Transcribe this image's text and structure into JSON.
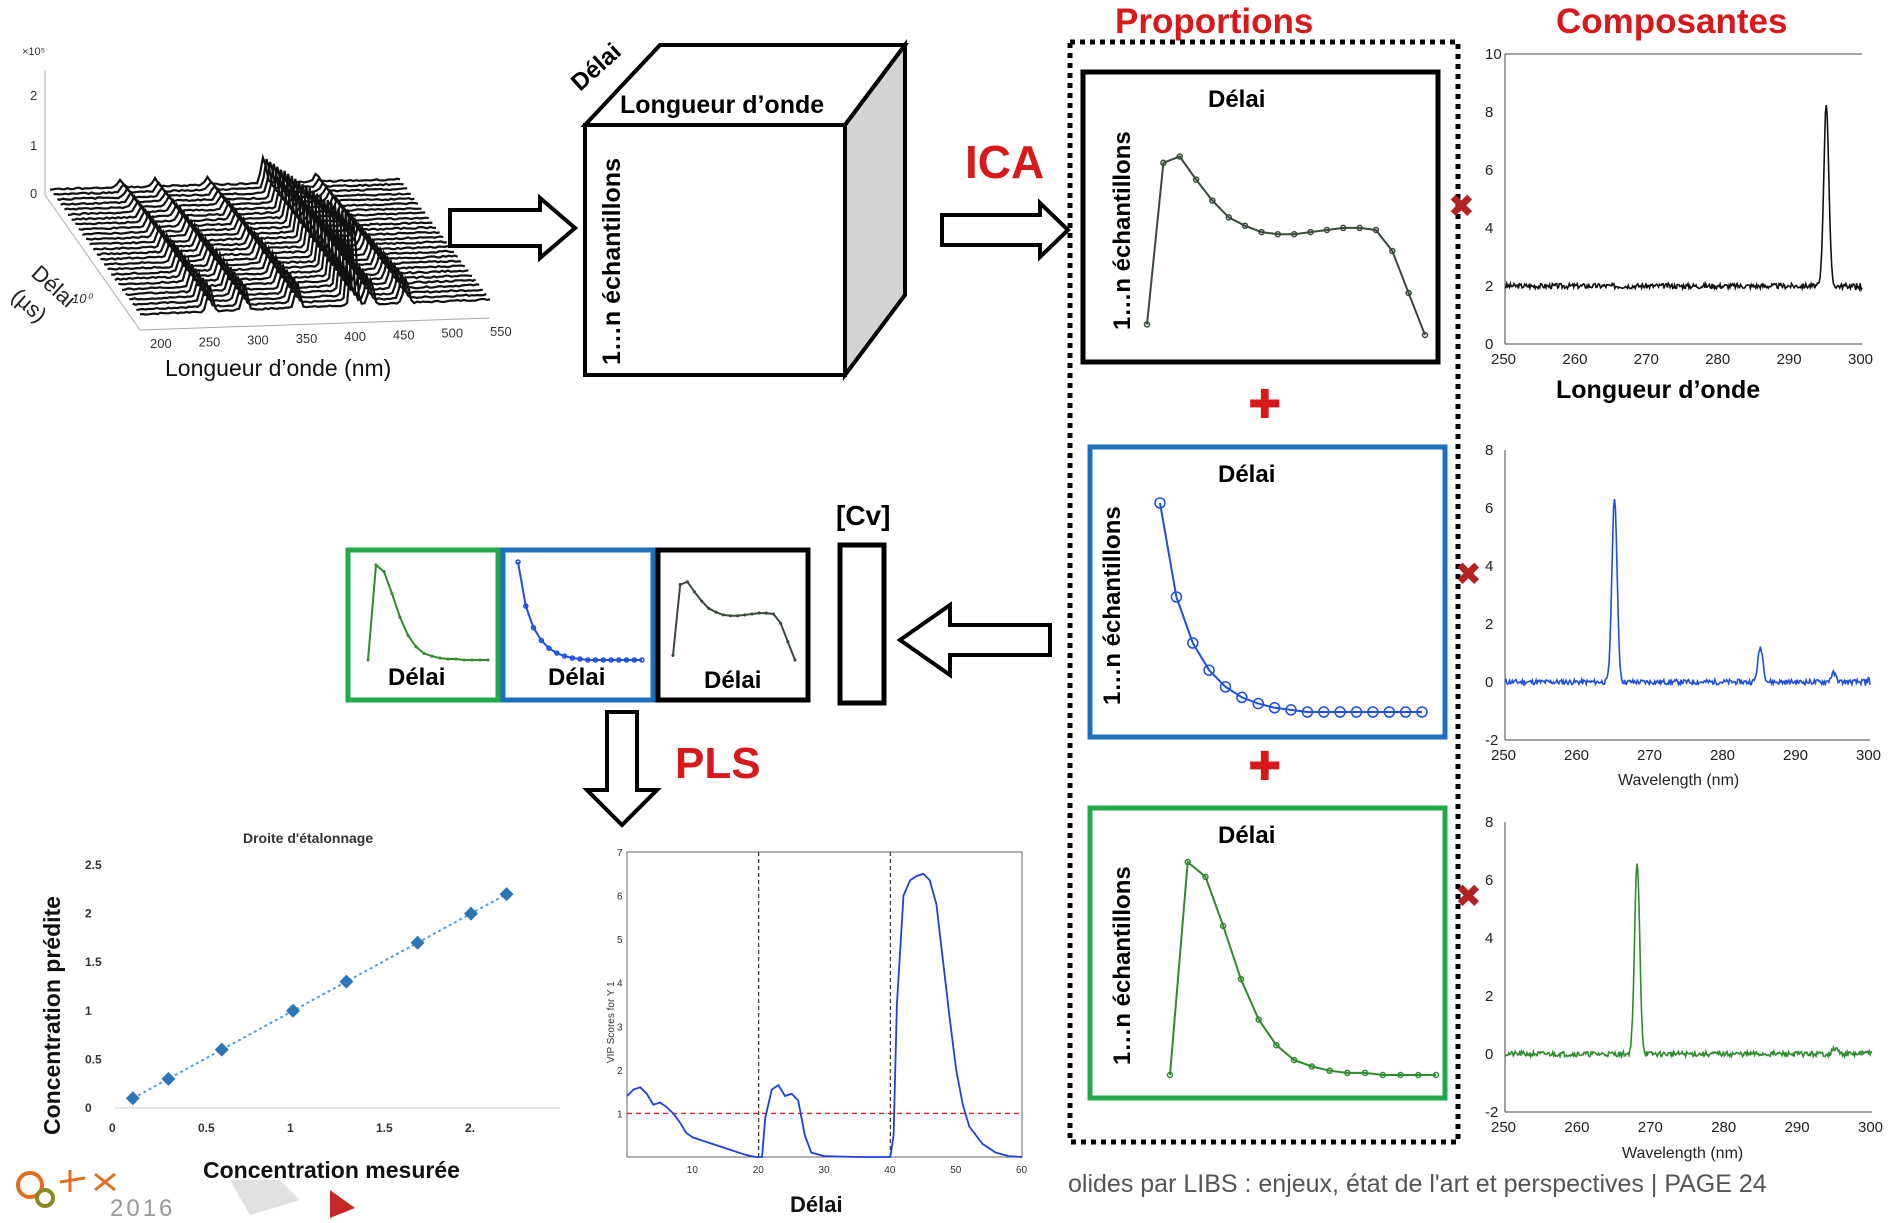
{
  "colors": {
    "red": "#d7191c",
    "blue": "#1f4fe0",
    "green": "#2e8b2e",
    "dark": "#3a4a3a",
    "box_blue": "#1f6fbf",
    "box_green": "#23a84a",
    "diamond": "#2e75b6",
    "cross": "#b22222"
  },
  "labels": {
    "delai": "Délai",
    "longueur_onde": "Longueur d’onde",
    "echantillons": "1…n échantillons",
    "ica": "ICA",
    "pls": "PLS",
    "proportions": "Proportions",
    "composantes": "Composantes",
    "cv": "[Cv]",
    "plus": "✚",
    "cross": "✖"
  },
  "spectra_3d": {
    "exponent": "×10⁵",
    "z_ticks": [
      "2",
      "1",
      "0"
    ],
    "x_ticks": [
      "200",
      "250",
      "300",
      "350",
      "400",
      "450",
      "500",
      "550"
    ],
    "y_label": "Délai",
    "y_unit": "(µs)",
    "y_tick": "10⁰",
    "x_label": "Longueur d’onde (nm)"
  },
  "component_1": {
    "xlabel": "Longueur d’onde",
    "x_ticks": [
      "250",
      "260",
      "270",
      "280",
      "290",
      "300"
    ],
    "y_ticks": [
      "0",
      "2",
      "4",
      "6",
      "8",
      "10"
    ],
    "xlim": [
      250,
      300
    ],
    "ylim": [
      0,
      10
    ],
    "baseline": 2,
    "peak_x": 295,
    "peak_y": 8.3
  },
  "component_2": {
    "xlabel": "Wavelength (nm)",
    "x_ticks": [
      "250",
      "260",
      "270",
      "280",
      "290",
      "300"
    ],
    "y_ticks": [
      "-2",
      "0",
      "2",
      "4",
      "6",
      "8"
    ],
    "xlim": [
      250,
      300
    ],
    "ylim": [
      -2,
      8
    ],
    "baseline": 0,
    "peaks": [
      [
        265,
        6.4
      ],
      [
        285,
        1.2
      ],
      [
        295,
        0.3
      ]
    ]
  },
  "component_3": {
    "xlabel": "Wavelength (nm)",
    "x_ticks": [
      "250",
      "260",
      "270",
      "280",
      "290",
      "300"
    ],
    "y_ticks": [
      "-2",
      "0",
      "2",
      "4",
      "6",
      "8"
    ],
    "xlim": [
      250,
      300
    ],
    "ylim": [
      -2,
      8
    ],
    "baseline": 0,
    "peaks": [
      [
        268,
        6.6
      ],
      [
        295,
        0.2
      ]
    ]
  },
  "calibration": {
    "title": "Droite d'étalonnage",
    "xlabel": "Concentration mesurée",
    "ylabel": "Concentration prédite",
    "x_ticks": [
      "0",
      "0.5",
      "1",
      "1.5",
      "2",
      "2."
    ],
    "y_ticks": [
      "0",
      "0.5",
      "1",
      "1.5",
      "2",
      "2.5"
    ],
    "xlim": [
      0,
      2.5
    ],
    "ylim": [
      0,
      2.5
    ],
    "points": [
      [
        0.1,
        0.1
      ],
      [
        0.3,
        0.3
      ],
      [
        0.6,
        0.6
      ],
      [
        1.0,
        1.0
      ],
      [
        1.3,
        1.3
      ],
      [
        1.7,
        1.7
      ],
      [
        2.0,
        2.0
      ],
      [
        2.2,
        2.2
      ]
    ]
  },
  "vip": {
    "ylabel": "VIP Scores for Y 1",
    "xlabel": "Délai",
    "x_ticks": [
      "10",
      "20",
      "30",
      "40",
      "50",
      "60"
    ],
    "y_ticks": [
      "1",
      "2",
      "3",
      "4",
      "5",
      "6",
      "7"
    ],
    "xlim": [
      0,
      60
    ],
    "ylim": [
      0,
      7
    ],
    "threshold": 1,
    "separators": [
      20,
      40
    ],
    "curve": [
      [
        0,
        1.4
      ],
      [
        1,
        1.55
      ],
      [
        2,
        1.6
      ],
      [
        3,
        1.45
      ],
      [
        4,
        1.2
      ],
      [
        5,
        1.25
      ],
      [
        6,
        1.15
      ],
      [
        7,
        1.0
      ],
      [
        8,
        0.8
      ],
      [
        9,
        0.55
      ],
      [
        10,
        0.45
      ],
      [
        12,
        0.35
      ],
      [
        14,
        0.25
      ],
      [
        16,
        0.15
      ],
      [
        18,
        0.05
      ],
      [
        19.5,
        0.0
      ],
      [
        20.5,
        0.0
      ],
      [
        21,
        0.9
      ],
      [
        22,
        1.55
      ],
      [
        23,
        1.65
      ],
      [
        24,
        1.4
      ],
      [
        25,
        1.45
      ],
      [
        26,
        1.3
      ],
      [
        27,
        0.5
      ],
      [
        28,
        0.1
      ],
      [
        30,
        0.02
      ],
      [
        35,
        0.0
      ],
      [
        40,
        0.0
      ],
      [
        40.5,
        0.5
      ],
      [
        41,
        3.5
      ],
      [
        42,
        6.0
      ],
      [
        43,
        6.35
      ],
      [
        44,
        6.45
      ],
      [
        45,
        6.5
      ],
      [
        46,
        6.35
      ],
      [
        47,
        5.8
      ],
      [
        48,
        4.5
      ],
      [
        49,
        3.2
      ],
      [
        50,
        2.0
      ],
      [
        51,
        1.2
      ],
      [
        52,
        0.7
      ],
      [
        54,
        0.3
      ],
      [
        56,
        0.1
      ],
      [
        58,
        0.02
      ],
      [
        60,
        0.0
      ]
    ]
  },
  "proportion_1": {
    "values": [
      0.05,
      0.82,
      0.85,
      0.74,
      0.64,
      0.56,
      0.52,
      0.49,
      0.48,
      0.48,
      0.49,
      0.5,
      0.51,
      0.51,
      0.5,
      0.4,
      0.2,
      0.0
    ]
  },
  "proportion_2": {
    "values": [
      1.0,
      0.55,
      0.33,
      0.2,
      0.12,
      0.07,
      0.04,
      0.02,
      0.01,
      0.0,
      0.0,
      0.0,
      0.0,
      0.0,
      0.0,
      0.0,
      0.0
    ]
  },
  "proportion_3": {
    "values": [
      0.0,
      1.0,
      0.93,
      0.7,
      0.45,
      0.26,
      0.14,
      0.07,
      0.04,
      0.02,
      0.01,
      0.01,
      0.0,
      0.0,
      0.0,
      0.0
    ]
  },
  "footer": {
    "text": "olides par LIBS : enjeux, état de l'art et perspectives |  PAGE 24"
  },
  "logo": {
    "year": "2016"
  }
}
